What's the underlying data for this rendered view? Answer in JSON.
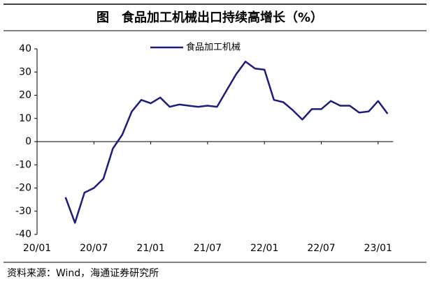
{
  "chart_data": {
    "type": "line",
    "title": "图　食品加工机械出口持续高增长（%）",
    "source": "资料来源：Wind，海通证券研究所",
    "categories": [
      "20/01",
      null,
      null,
      null,
      null,
      null,
      "20/07",
      null,
      null,
      null,
      null,
      null,
      "21/01",
      null,
      null,
      null,
      null,
      null,
      "21/07",
      null,
      null,
      null,
      null,
      null,
      "22/01",
      null,
      null,
      null,
      null,
      null,
      "22/07",
      null,
      null,
      null,
      null,
      null,
      "23/01",
      null
    ],
    "series": [
      {
        "name": "食品加工机械",
        "color": "#1c1c7c",
        "values": [
          null,
          null,
          null,
          -24,
          -35,
          -22,
          -20,
          -16,
          -3,
          3,
          13,
          18,
          16.5,
          19,
          15,
          16,
          15.5,
          15,
          15.5,
          15,
          22,
          29,
          34.5,
          31.5,
          31,
          18,
          17,
          13.5,
          9.5,
          14,
          14,
          17.5,
          15.5,
          15.5,
          12.5,
          13,
          17.5,
          12
        ]
      }
    ],
    "ylim": [
      -40,
      40
    ],
    "yticks": [
      -40,
      -30,
      -20,
      -10,
      0,
      10,
      20,
      30,
      40
    ],
    "legend": "top"
  }
}
